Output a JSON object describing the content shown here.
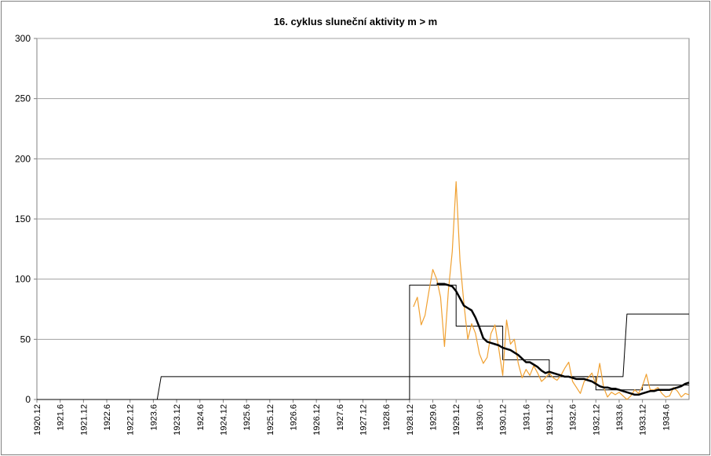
{
  "chart_data": {
    "type": "line",
    "title": "16. cyklus sluneční aktivity  m > m",
    "xlabel": "",
    "ylabel": "",
    "ylim": [
      0,
      300
    ],
    "y_ticks": [
      0,
      50,
      100,
      150,
      200,
      250,
      300
    ],
    "x_start": "1920.12",
    "x_end": "1934.12",
    "x_tick_labels": [
      "1920.12",
      "1921.6",
      "1921.12",
      "1922.6",
      "1922.12",
      "1923.6",
      "1923.12",
      "1924.6",
      "1924.12",
      "1925.6",
      "1925.12",
      "1926.6",
      "1926.12",
      "1927.6",
      "1927.12",
      "1928.6",
      "1928.12",
      "1929.6",
      "1929.12",
      "1930.6",
      "1930.12",
      "1931.6",
      "1931.12",
      "1932.6",
      "1932.12",
      "1933.6",
      "1933.12",
      "1934.6"
    ],
    "grid": true,
    "legend": "none",
    "colors": {
      "monthly": "#F0A030",
      "smoothed": "#000000",
      "step": "#000000",
      "gridline": "#A0A0A0"
    },
    "series": [
      {
        "style": "monthly",
        "x": [
          "1929.1",
          "1929.2",
          "1929.3",
          "1929.4",
          "1929.5",
          "1929.6",
          "1929.7",
          "1929.8",
          "1929.9",
          "1929.10",
          "1929.11",
          "1929.12",
          "1930.1",
          "1930.2",
          "1930.3",
          "1930.4",
          "1930.5",
          "1930.6",
          "1930.7",
          "1930.8",
          "1930.9",
          "1930.10",
          "1930.11",
          "1930.12",
          "1931.1",
          "1931.2",
          "1931.3",
          "1931.4",
          "1931.5",
          "1931.6",
          "1931.7",
          "1931.8",
          "1931.9",
          "1931.10",
          "1931.11",
          "1931.12",
          "1932.1",
          "1932.2",
          "1932.3",
          "1932.4",
          "1932.5",
          "1932.6",
          "1932.7",
          "1932.8",
          "1932.9",
          "1932.10",
          "1932.11",
          "1932.12",
          "1933.1",
          "1933.2",
          "1933.3",
          "1933.4",
          "1933.5",
          "1933.6",
          "1933.7",
          "1933.8",
          "1933.9",
          "1933.10",
          "1933.11",
          "1933.12",
          "1934.1",
          "1934.2",
          "1934.3",
          "1934.4",
          "1934.5",
          "1934.6",
          "1934.7",
          "1934.8",
          "1934.9",
          "1934.10",
          "1934.11",
          "1934.12"
        ],
        "values": [
          77,
          85,
          62,
          70,
          90,
          108,
          100,
          85,
          44,
          90,
          123,
          181,
          115,
          80,
          50,
          63,
          55,
          38,
          30,
          35,
          55,
          62,
          42,
          20,
          66,
          46,
          50,
          30,
          18,
          25,
          20,
          28,
          22,
          15,
          18,
          22,
          18,
          16,
          20,
          26,
          31,
          15,
          10,
          5,
          15,
          18,
          22,
          12,
          30,
          10,
          2,
          6,
          4,
          6,
          3,
          0,
          3,
          8,
          5,
          11,
          21,
          8,
          8,
          10,
          5,
          2,
          3,
          10,
          7,
          2,
          5,
          4
        ]
      },
      {
        "style": "smoothed",
        "x": [
          "1929.7",
          "1929.8",
          "1929.9",
          "1929.10",
          "1929.11",
          "1929.12",
          "1930.1",
          "1930.2",
          "1930.3",
          "1930.4",
          "1930.5",
          "1930.6",
          "1930.7",
          "1930.8",
          "1930.9",
          "1930.10",
          "1930.11",
          "1930.12",
          "1931.1",
          "1931.2",
          "1931.3",
          "1931.4",
          "1931.5",
          "1931.6",
          "1931.7",
          "1931.8",
          "1931.9",
          "1931.10",
          "1931.11",
          "1931.12",
          "1932.1",
          "1932.2",
          "1932.3",
          "1932.4",
          "1932.5",
          "1932.6",
          "1932.7",
          "1932.8",
          "1932.9",
          "1932.10",
          "1932.11",
          "1932.12",
          "1933.1",
          "1933.2",
          "1933.3",
          "1933.4",
          "1933.5",
          "1933.6",
          "1933.7",
          "1933.8",
          "1933.9",
          "1933.10",
          "1933.11",
          "1933.12",
          "1934.1",
          "1934.2",
          "1934.3",
          "1934.4",
          "1934.5",
          "1934.6",
          "1934.7",
          "1934.8",
          "1934.9",
          "1934.10",
          "1934.11",
          "1934.12"
        ],
        "values": [
          96,
          96,
          96,
          95,
          94,
          90,
          84,
          78,
          76,
          74,
          68,
          60,
          51,
          48,
          47,
          46,
          45,
          43,
          42,
          41,
          39,
          37,
          34,
          31,
          31,
          29,
          27,
          24,
          22,
          23,
          22,
          21,
          20,
          19,
          19,
          18,
          17,
          17,
          17,
          16,
          15,
          13,
          11,
          10,
          10,
          9,
          9,
          8,
          7,
          6,
          5,
          4,
          4,
          5,
          6,
          7,
          7,
          8,
          8,
          8,
          8,
          9,
          10,
          11,
          13,
          14
        ]
      },
      {
        "style": "step",
        "x": [
          "1920.12",
          "1923.7",
          "1923.8",
          "1933.7",
          "1933.8",
          "1934.12"
        ],
        "values": [
          0,
          0,
          19,
          19,
          71,
          71
        ]
      },
      {
        "style": "step",
        "x": [
          "1920.12",
          "1927.12",
          "1928.12",
          "1928.12",
          "1929.12",
          "1929.12",
          "1930.12",
          "1930.12",
          "1931.12",
          "1931.12",
          "1932.12",
          "1932.12",
          "1933.12",
          "1933.12",
          "1934.12"
        ],
        "values": [
          0,
          0,
          0,
          95,
          95,
          61,
          61,
          33,
          33,
          19,
          19,
          8,
          8,
          12,
          12
        ]
      }
    ]
  }
}
